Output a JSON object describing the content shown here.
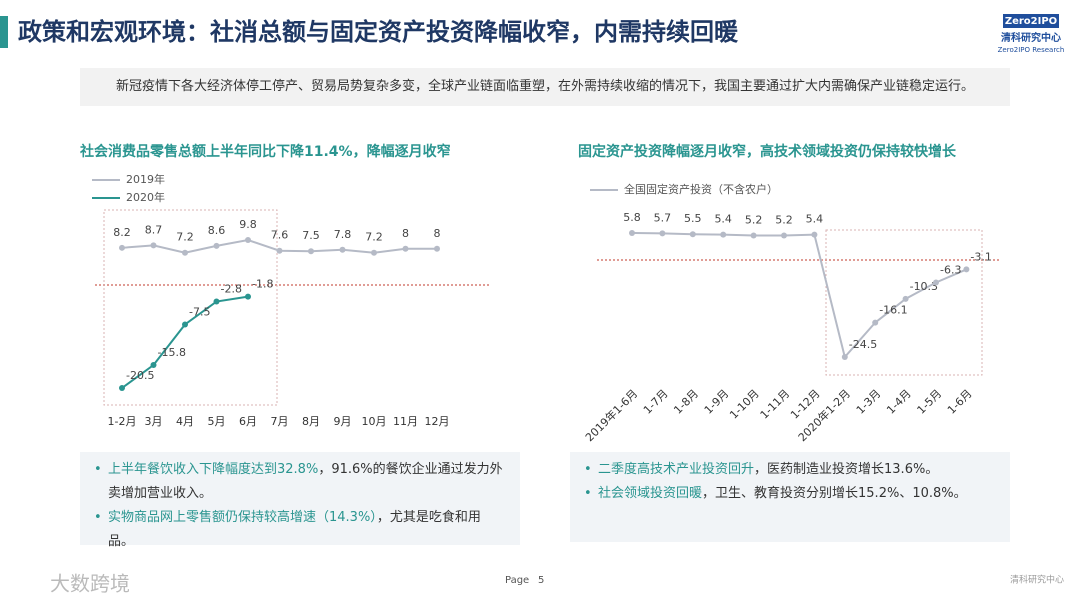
{
  "header": {
    "title": "政策和宏观环境：社消总额与固定资产投资降幅收窄，内需持续回暖",
    "logo": {
      "brand": "Zero2IPO",
      "name": "清科研究中心",
      "sub": "Zero2IPO Research"
    }
  },
  "intro": "新冠疫情下各大经济体停工停产、贸易局势复杂多变，全球产业链面临重塑，在外需持续收缩的情况下，我国主要通过扩大内需确保产业链稳定运行。",
  "chart_data": [
    {
      "type": "line",
      "title": "社会消费品零售总额上半年同比下降11.4%，降幅逐月收窄",
      "categories": [
        "1-2月",
        "3月",
        "4月",
        "5月",
        "6月",
        "7月",
        "8月",
        "9月",
        "10月",
        "11月",
        "12月"
      ],
      "series": [
        {
          "name": "2019年",
          "color": "#b5bac6",
          "values": [
            8.2,
            8.7,
            7.2,
            8.6,
            9.8,
            7.6,
            7.5,
            7.8,
            7.2,
            8,
            8
          ]
        },
        {
          "name": "2020年",
          "color": "#2a9590",
          "values": [
            -20.5,
            -15.8,
            -7.5,
            -2.8,
            -1.8,
            null,
            null,
            null,
            null,
            null,
            null
          ]
        }
      ]
    },
    {
      "type": "line",
      "title": "固定资产投资降幅逐月收窄，高技术领域投资仍保持较快增长",
      "categories": [
        "2019年1-6月",
        "1-7月",
        "1-8月",
        "1-9月",
        "1-10月",
        "1-11月",
        "1-12月",
        "2020年1-2月",
        "1-3月",
        "1-4月",
        "1-5月",
        "1-6月"
      ],
      "series": [
        {
          "name": "全国固定资产投资（不含农户）",
          "color": "#b5bac6",
          "values": [
            5.8,
            5.7,
            5.5,
            5.4,
            5.2,
            5.2,
            5.4,
            -24.5,
            -16.1,
            -10.3,
            -6.3,
            -3.1
          ]
        }
      ]
    }
  ],
  "bullets": [
    [
      [
        "上半年餐饮收入下降幅度达到32.8%",
        "，91.6%的餐饮企业通过发力外卖增加营业收入。"
      ],
      [
        "实物商品网上零售额仍保持较高增速（14.3%）",
        "，尤其是吃食和用品。"
      ]
    ],
    [
      [
        "二季度高技术产业投资回升",
        "，医药制造业投资增长13.6%。"
      ],
      [
        "社会领域投资回暖",
        "，卫生、教育投资分别增长15.2%、10.8%。"
      ]
    ]
  ],
  "footer": {
    "page_label": "Page",
    "page": "5",
    "watermark": "大数跨境",
    "brand": "清科研究中心"
  }
}
